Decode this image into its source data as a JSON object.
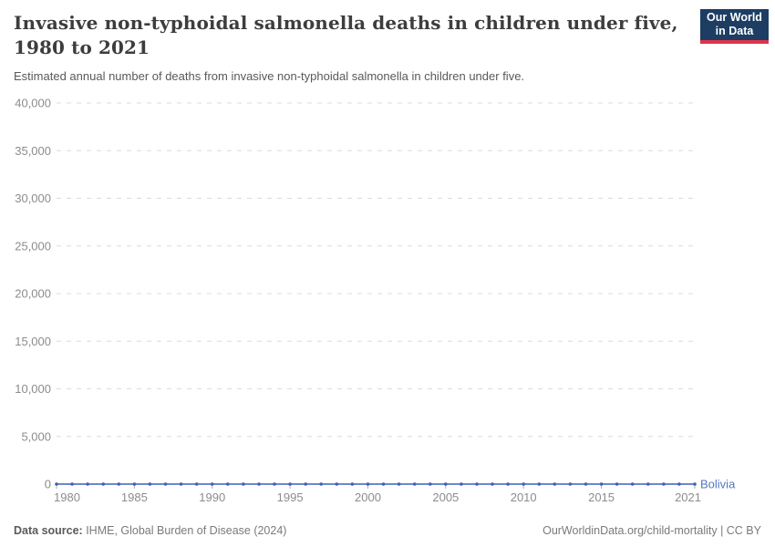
{
  "header": {
    "title": "Invasive non-typhoidal salmonella deaths in children under five, 1980 to 2021",
    "subtitle": "Estimated annual number of deaths from invasive non-typhoidal salmonella in children under five."
  },
  "logo": {
    "line1": "Our World",
    "line2": "in Data",
    "bg_color": "#1d3d63",
    "stripe_color": "#dc354a"
  },
  "footer": {
    "datasource_label": "Data source:",
    "datasource_value": " IHME, Global Burden of Disease (2024)",
    "credit": "OurWorldinData.org/child-mortality | CC BY"
  },
  "colors": {
    "line": "#3c64af",
    "entity_label": "#5577c1",
    "grid": "#dcdcdc",
    "zero_line": "#a8a8a8",
    "axis_text": "#8c8c8c",
    "tick_mark": "#b0b0b0"
  },
  "chart_data": {
    "type": "line",
    "title": "Invasive non-typhoidal salmonella deaths in children under five, 1980 to 2021",
    "xlabel": "",
    "ylabel": "",
    "grid": "horizontal-dashed",
    "legend_position": "end-of-line-label",
    "xlim": [
      1980,
      2021
    ],
    "ylim": [
      0,
      40000
    ],
    "yticks": [
      0,
      5000,
      10000,
      15000,
      20000,
      25000,
      30000,
      35000,
      40000
    ],
    "ytick_labels": [
      "0",
      "5,000",
      "10,000",
      "15,000",
      "20,000",
      "25,000",
      "30,000",
      "35,000",
      "40,000"
    ],
    "xticks": [
      1980,
      1985,
      1990,
      1995,
      2000,
      2005,
      2010,
      2015,
      2021
    ],
    "x": [
      1980,
      1981,
      1982,
      1983,
      1984,
      1985,
      1986,
      1987,
      1988,
      1989,
      1990,
      1991,
      1992,
      1993,
      1994,
      1995,
      1996,
      1997,
      1998,
      1999,
      2000,
      2001,
      2002,
      2003,
      2004,
      2005,
      2006,
      2007,
      2008,
      2009,
      2010,
      2011,
      2012,
      2013,
      2014,
      2015,
      2016,
      2017,
      2018,
      2019,
      2020,
      2021
    ],
    "series": [
      {
        "name": "Bolivia",
        "values": [
          0,
          0,
          0,
          0,
          0,
          0,
          0,
          0,
          0,
          0,
          0,
          0,
          0,
          0,
          0,
          0,
          0,
          0,
          0,
          0,
          0,
          0,
          0,
          0,
          0,
          0,
          0,
          0,
          0,
          0,
          0,
          0,
          0,
          0,
          0,
          0,
          0,
          0,
          0,
          0,
          0,
          0
        ]
      }
    ]
  }
}
